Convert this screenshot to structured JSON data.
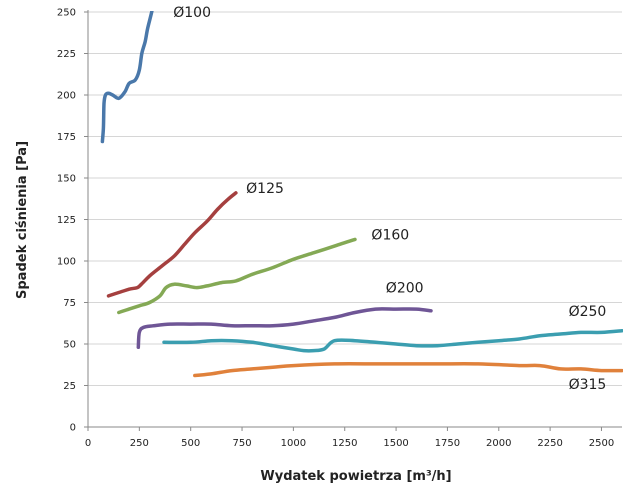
{
  "chart_data": {
    "type": "line",
    "title": "",
    "xlabel": "Wydatek powietrza [m³/h]",
    "ylabel": "Spadek ciśnienia [Pa]",
    "xlim": [
      0,
      2600
    ],
    "ylim": [
      0,
      250
    ],
    "x_ticks": [
      0,
      250,
      500,
      750,
      1000,
      1250,
      1500,
      1750,
      2000,
      2250,
      2500
    ],
    "y_ticks": [
      0,
      25,
      50,
      75,
      100,
      125,
      150,
      175,
      200,
      225,
      250
    ],
    "grid": "horizontal",
    "legend": "none (series labelled directly on curves)",
    "series": [
      {
        "name": "Ø100",
        "color": "#4a78aa",
        "points": [
          [
            70,
            172
          ],
          [
            75,
            180
          ],
          [
            78,
            195
          ],
          [
            85,
            200
          ],
          [
            100,
            201
          ],
          [
            120,
            200
          ],
          [
            150,
            198
          ],
          [
            180,
            202
          ],
          [
            200,
            207
          ],
          [
            230,
            209
          ],
          [
            250,
            215
          ],
          [
            262,
            225
          ],
          [
            278,
            232
          ],
          [
            290,
            240
          ],
          [
            310,
            250
          ],
          [
            330,
            262
          ]
        ]
      },
      {
        "name": "Ø125",
        "color": "#a5403f",
        "points": [
          [
            100,
            79
          ],
          [
            150,
            81
          ],
          [
            200,
            83
          ],
          [
            240,
            84
          ],
          [
            260,
            86
          ],
          [
            300,
            91
          ],
          [
            360,
            97
          ],
          [
            420,
            103
          ],
          [
            470,
            110
          ],
          [
            520,
            117
          ],
          [
            580,
            124
          ],
          [
            630,
            131
          ],
          [
            680,
            137
          ],
          [
            720,
            141
          ]
        ]
      },
      {
        "name": "Ø160",
        "color": "#84a955",
        "points": [
          [
            150,
            69
          ],
          [
            200,
            71
          ],
          [
            250,
            73
          ],
          [
            300,
            75
          ],
          [
            350,
            79
          ],
          [
            380,
            84
          ],
          [
            420,
            86
          ],
          [
            480,
            85
          ],
          [
            530,
            84
          ],
          [
            580,
            85
          ],
          [
            650,
            87
          ],
          [
            720,
            88
          ],
          [
            800,
            92
          ],
          [
            900,
            96
          ],
          [
            1000,
            101
          ],
          [
            1100,
            105
          ],
          [
            1200,
            109
          ],
          [
            1300,
            113
          ]
        ]
      },
      {
        "name": "Ø200",
        "color": "#6f5696",
        "points": [
          [
            245,
            48
          ],
          [
            250,
            57
          ],
          [
            270,
            60
          ],
          [
            320,
            61
          ],
          [
            400,
            62
          ],
          [
            500,
            62
          ],
          [
            600,
            62
          ],
          [
            700,
            61
          ],
          [
            800,
            61
          ],
          [
            900,
            61
          ],
          [
            1000,
            62
          ],
          [
            1100,
            64
          ],
          [
            1200,
            66
          ],
          [
            1300,
            69
          ],
          [
            1400,
            71
          ],
          [
            1500,
            71
          ],
          [
            1600,
            71
          ],
          [
            1670,
            70
          ]
        ]
      },
      {
        "name": "Ø250",
        "color": "#3b9eb0",
        "points": [
          [
            370,
            51
          ],
          [
            500,
            51
          ],
          [
            600,
            52
          ],
          [
            700,
            52
          ],
          [
            800,
            51
          ],
          [
            900,
            49
          ],
          [
            1000,
            47
          ],
          [
            1050,
            46
          ],
          [
            1100,
            46
          ],
          [
            1150,
            47
          ],
          [
            1200,
            52
          ],
          [
            1300,
            52
          ],
          [
            1400,
            51
          ],
          [
            1500,
            50
          ],
          [
            1600,
            49
          ],
          [
            1700,
            49
          ],
          [
            1800,
            50
          ],
          [
            1900,
            51
          ],
          [
            2000,
            52
          ],
          [
            2100,
            53
          ],
          [
            2200,
            55
          ],
          [
            2300,
            56
          ],
          [
            2400,
            57
          ],
          [
            2500,
            57
          ],
          [
            2600,
            58
          ]
        ]
      },
      {
        "name": "Ø315",
        "color": "#e0813b",
        "points": [
          [
            520,
            31
          ],
          [
            600,
            32
          ],
          [
            700,
            34
          ],
          [
            800,
            35
          ],
          [
            900,
            36
          ],
          [
            1000,
            37
          ],
          [
            1200,
            38
          ],
          [
            1400,
            38
          ],
          [
            1500,
            38
          ],
          [
            1700,
            38
          ],
          [
            1900,
            38
          ],
          [
            2100,
            37
          ],
          [
            2200,
            37
          ],
          [
            2300,
            35
          ],
          [
            2400,
            35
          ],
          [
            2500,
            34
          ],
          [
            2600,
            34
          ]
        ]
      }
    ]
  }
}
